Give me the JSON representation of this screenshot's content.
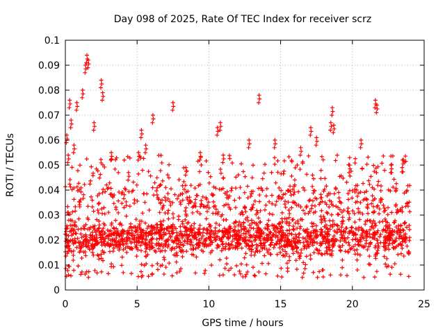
{
  "chart_data": {
    "type": "scatter",
    "title": "Day 098 of 2025, Rate Of TEC Index for receiver scrz",
    "xlabel": "GPS time / hours",
    "ylabel": "ROTI / TECUs",
    "xlim": [
      0,
      25
    ],
    "ylim": [
      0,
      0.1
    ],
    "xticks": [
      "0",
      "5",
      "10",
      "15",
      "20",
      "25"
    ],
    "yticks": [
      "0",
      "0.01",
      "0.02",
      "0.03",
      "0.04",
      "0.05",
      "0.06",
      "0.07",
      "0.08",
      "0.09",
      "0.1"
    ],
    "grid": true,
    "marker": "+",
    "series": [
      {
        "name": "ROTI",
        "color": "#ff0000",
        "x_range": [
          0,
          24
        ],
        "typical_range": [
          0.01,
          0.03
        ],
        "x": [
          0.1,
          0.2,
          0.3,
          0.4,
          0.6,
          0.8,
          1.2,
          1.4,
          1.5,
          1.6,
          2.0,
          2.5,
          2.6,
          3.2,
          4.4,
          5.1,
          5.3,
          5.6,
          6.1,
          7.5,
          8.4,
          9.4,
          10.6,
          10.8,
          11.0,
          12.8,
          13.5,
          14.6,
          16.4,
          17.1,
          17.5,
          18.5,
          18.6,
          18.7,
          19.8,
          20.6,
          21.6,
          21.7,
          22.7,
          23.5
        ],
        "y": [
          0.062,
          0.054,
          0.076,
          0.068,
          0.058,
          0.075,
          0.08,
          0.09,
          0.094,
          0.092,
          0.067,
          0.084,
          0.079,
          0.055,
          0.047,
          0.055,
          0.064,
          0.058,
          0.07,
          0.075,
          0.049,
          0.055,
          0.065,
          0.067,
          0.054,
          0.06,
          0.078,
          0.06,
          0.057,
          0.065,
          0.061,
          0.067,
          0.073,
          0.066,
          0.05,
          0.06,
          0.076,
          0.074,
          0.05,
          0.052
        ]
      }
    ]
  }
}
